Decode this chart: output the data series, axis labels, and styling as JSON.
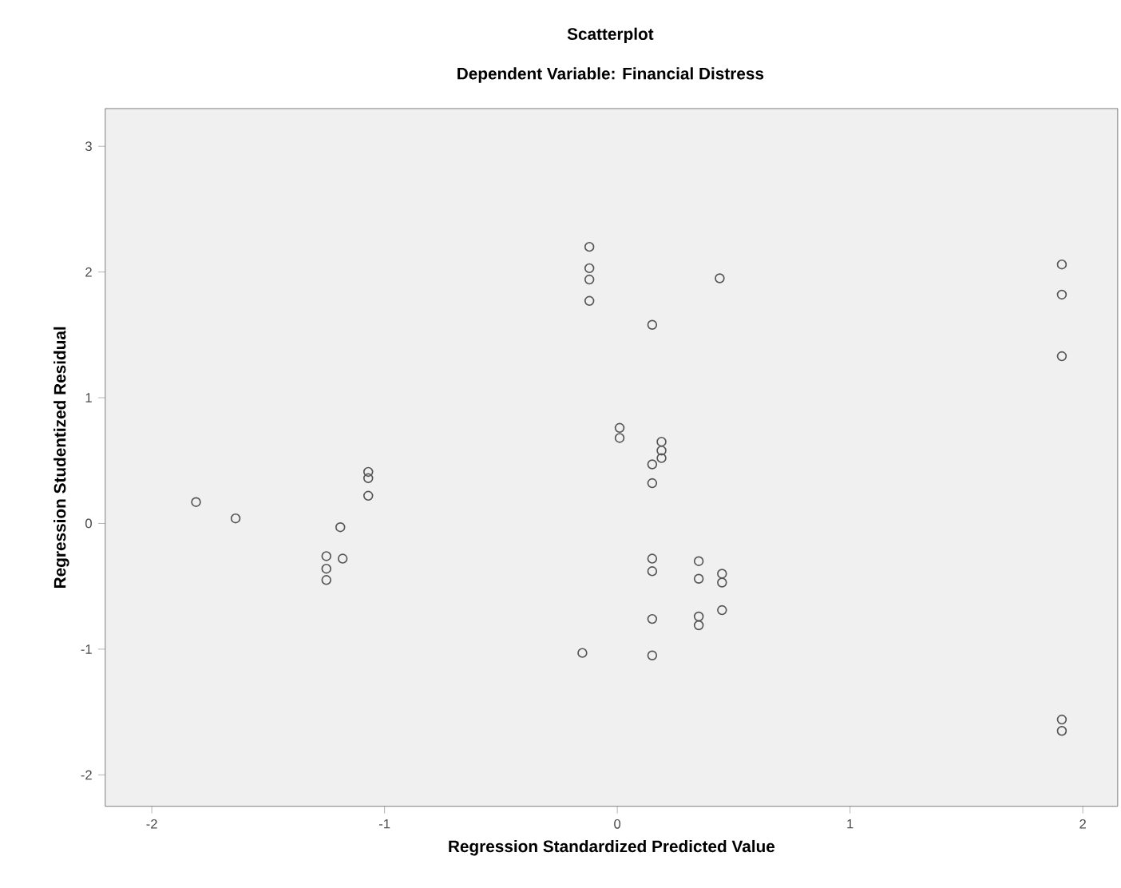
{
  "chart_data": {
    "type": "scatter",
    "title": "Scatterplot",
    "subtitle": "Dependent Variable: Financial Distress",
    "xlabel": "Regression Standardized Predicted Value",
    "ylabel": "Regression Studentized Residual",
    "x": [
      -1.81,
      -1.64,
      -1.19,
      -1.18,
      -1.25,
      -1.25,
      -1.25,
      -1.07,
      -1.07,
      -1.07,
      -0.12,
      -0.12,
      -0.12,
      -0.12,
      -0.15,
      0.15,
      0.44,
      0.01,
      0.01,
      0.19,
      0.19,
      0.19,
      0.15,
      0.15,
      0.15,
      0.15,
      0.35,
      0.35,
      0.45,
      0.45,
      0.45,
      0.15,
      0.35,
      0.35,
      0.15,
      1.91,
      1.91,
      1.91,
      1.91,
      1.91
    ],
    "values": [
      0.17,
      0.04,
      -0.03,
      -0.28,
      -0.26,
      -0.36,
      -0.45,
      0.41,
      0.36,
      0.22,
      2.2,
      2.03,
      1.94,
      1.77,
      -1.03,
      1.58,
      1.95,
      0.76,
      0.68,
      0.65,
      0.58,
      0.52,
      0.47,
      0.32,
      -0.28,
      -0.38,
      -0.3,
      -0.44,
      -0.4,
      -0.47,
      -0.69,
      -0.76,
      -0.74,
      -0.81,
      -1.05,
      2.06,
      1.82,
      1.33,
      -1.56,
      -1.65
    ],
    "color": "#555555",
    "marker": "circle",
    "xlim": [
      -2.2,
      2.15
    ],
    "ylim": [
      -2.25,
      3.3
    ],
    "xticks": [
      -2,
      -1,
      0,
      1,
      2
    ],
    "yticks": [
      -2,
      -1,
      0,
      1,
      2,
      3
    ],
    "grid": false
  }
}
